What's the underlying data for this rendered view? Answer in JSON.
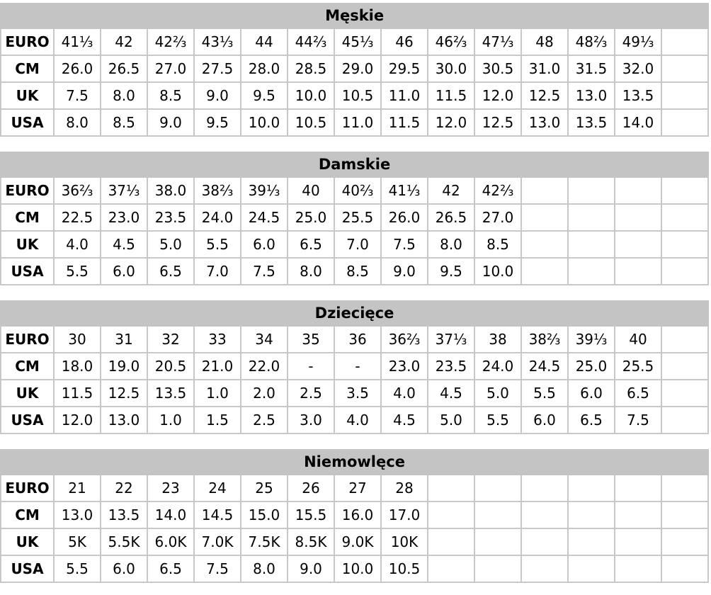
{
  "sections": [
    {
      "title": "Męskie",
      "rows": [
        {
          "label": "EURO",
          "values": [
            "41⅓",
            "42",
            "42⅔",
            "43⅓",
            "44",
            "44⅔",
            "45⅓",
            "46",
            "46⅔",
            "47⅓",
            "48",
            "48⅔",
            "49⅓"
          ]
        },
        {
          "label": "CM",
          "values": [
            "26.0",
            "26.5",
            "27.0",
            "27.5",
            "28.0",
            "28.5",
            "29.0",
            "29.5",
            "30.0",
            "30.5",
            "31.0",
            "31.5",
            "32.0"
          ]
        },
        {
          "label": "UK",
          "values": [
            "7.5",
            "8.0",
            "8.5",
            "9.0",
            "9.5",
            "10.0",
            "10.5",
            "11.0",
            "11.5",
            "12.0",
            "12.5",
            "13.0",
            "13.5"
          ]
        },
        {
          "label": "USA",
          "values": [
            "8.0",
            "8.5",
            "9.0",
            "9.5",
            "10.0",
            "10.5",
            "11.0",
            "11.5",
            "12.0",
            "12.5",
            "13.0",
            "13.5",
            "14.0"
          ]
        }
      ]
    },
    {
      "title": "Damskie",
      "rows": [
        {
          "label": "EURO",
          "values": [
            "36⅔",
            "37⅓",
            "38.0",
            "38⅔",
            "39⅓",
            "40",
            "40⅔",
            "41⅓",
            "42",
            "42⅔"
          ]
        },
        {
          "label": "CM",
          "values": [
            "22.5",
            "23.0",
            "23.5",
            "24.0",
            "24.5",
            "25.0",
            "25.5",
            "26.0",
            "26.5",
            "27.0"
          ]
        },
        {
          "label": "UK",
          "values": [
            "4.0",
            "4.5",
            "5.0",
            "5.5",
            "6.0",
            "6.5",
            "7.0",
            "7.5",
            "8.0",
            "8.5"
          ]
        },
        {
          "label": "USA",
          "values": [
            "5.5",
            "6.0",
            "6.5",
            "7.0",
            "7.5",
            "8.0",
            "8.5",
            "9.0",
            "9.5",
            "10.0"
          ]
        }
      ]
    },
    {
      "title": "Dziecięce",
      "rows": [
        {
          "label": "EURO",
          "values": [
            "30",
            "31",
            "32",
            "33",
            "34",
            "35",
            "36",
            "36⅔",
            "37⅓",
            "38",
            "38⅔",
            "39⅓",
            "40"
          ]
        },
        {
          "label": "CM",
          "values": [
            "18.0",
            "19.0",
            "20.5",
            "21.0",
            "22.0",
            "-",
            "-",
            "23.0",
            "23.5",
            "24.0",
            "24.5",
            "25.0",
            "25.5"
          ]
        },
        {
          "label": "UK",
          "values": [
            "11.5",
            "12.5",
            "13.5",
            "1.0",
            "2.0",
            "2.5",
            "3.5",
            "4.0",
            "4.5",
            "5.0",
            "5.5",
            "6.0",
            "6.5"
          ]
        },
        {
          "label": "USA",
          "values": [
            "12.0",
            "13.0",
            "1.0",
            "1.5",
            "2.5",
            "3.0",
            "4.0",
            "4.5",
            "5.0",
            "5.5",
            "6.0",
            "6.5",
            "7.5"
          ]
        }
      ]
    },
    {
      "title": "Niemowlęce",
      "rows": [
        {
          "label": "EURO",
          "values": [
            "21",
            "22",
            "23",
            "24",
            "25",
            "26",
            "27",
            "28"
          ]
        },
        {
          "label": "CM",
          "values": [
            "13.0",
            "13.5",
            "14.0",
            "14.5",
            "15.0",
            "15.5",
            "16.0",
            "17.0"
          ]
        },
        {
          "label": "UK",
          "values": [
            "5K",
            "5.5K",
            "6.0K",
            "7.0K",
            "7.5K",
            "8.5K",
            "9.0K",
            "10K"
          ]
        },
        {
          "label": "USA",
          "values": [
            "5.5",
            "6.0",
            "6.5",
            "7.5",
            "8.0",
            "9.0",
            "10.0",
            "10.5"
          ]
        }
      ]
    }
  ]
}
